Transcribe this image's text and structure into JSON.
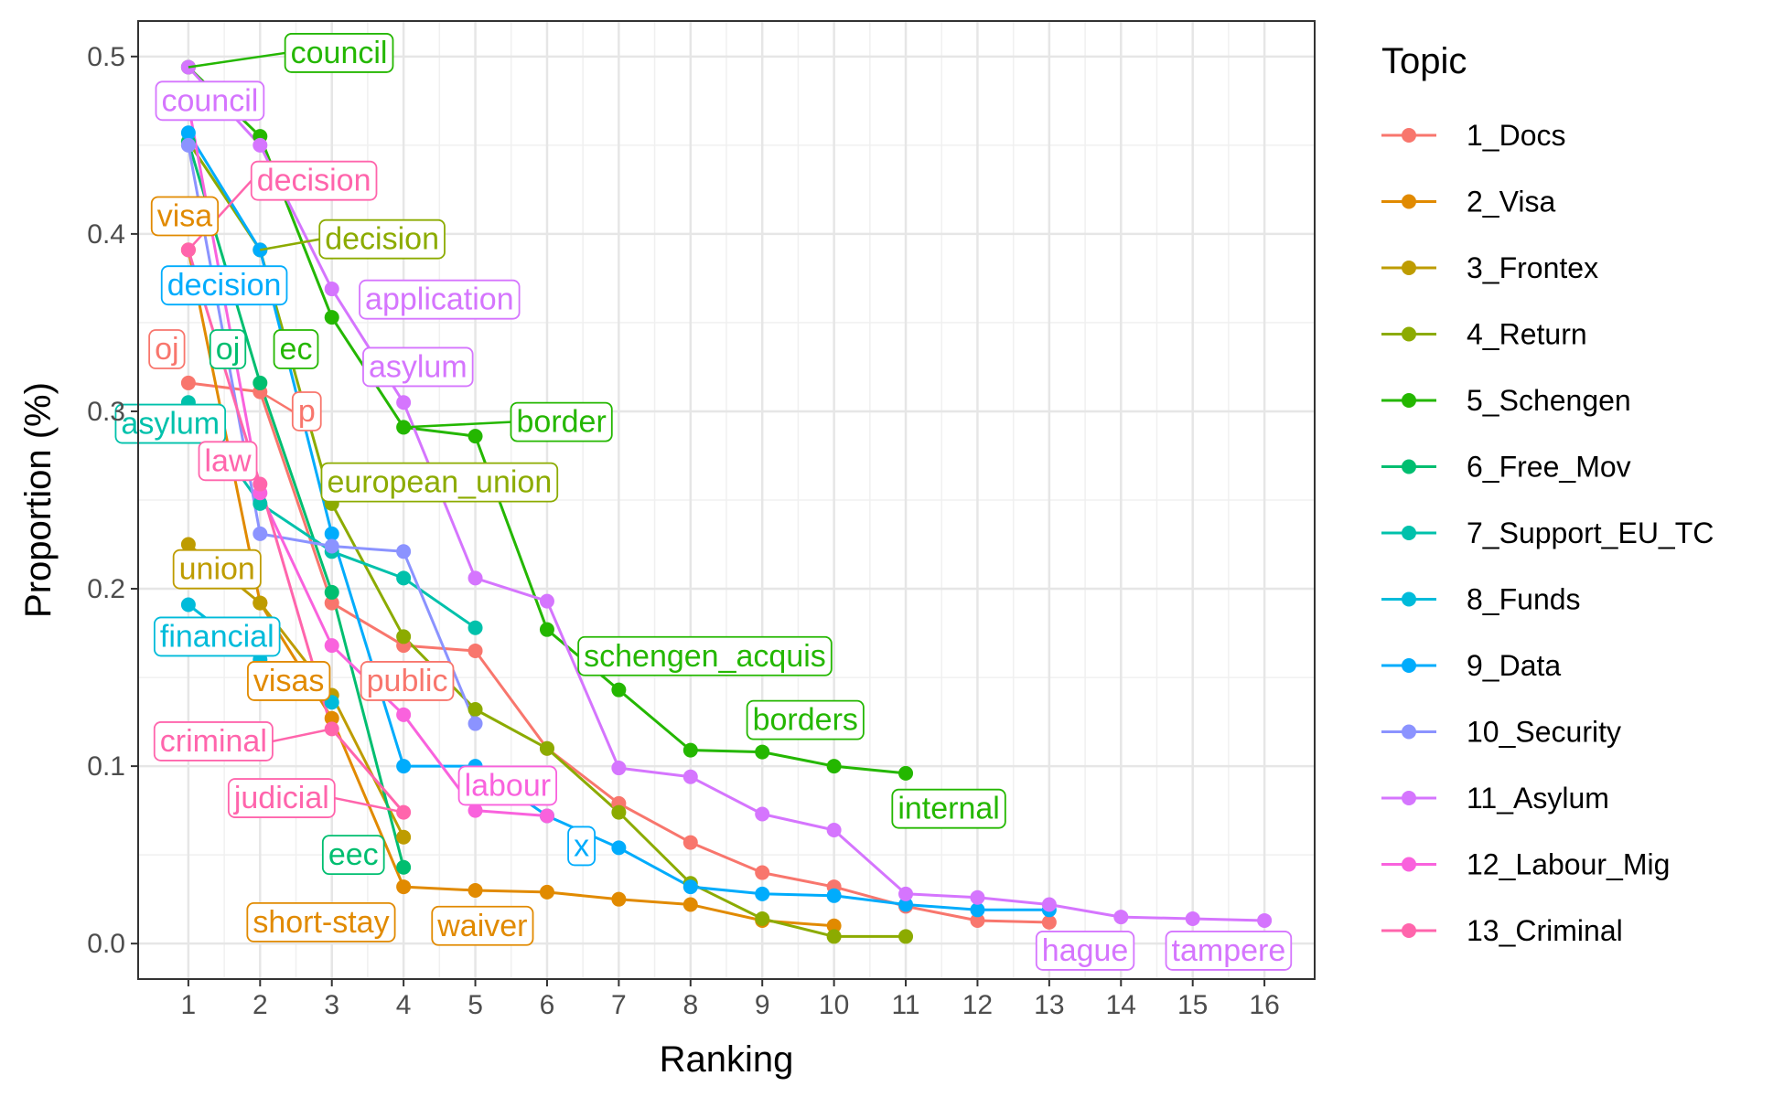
{
  "chart_data": {
    "type": "line",
    "xlabel": "Ranking",
    "ylabel": "Proportion (%)",
    "xlim": [
      0.3,
      16.7
    ],
    "ylim": [
      -0.02,
      0.52
    ],
    "x_ticks": [
      "1",
      "2",
      "3",
      "4",
      "5",
      "6",
      "7",
      "8",
      "9",
      "10",
      "11",
      "12",
      "13",
      "14",
      "15",
      "16"
    ],
    "y_ticks": [
      "0.0",
      "0.1",
      "0.2",
      "0.3",
      "0.4",
      "0.5"
    ],
    "grid": true,
    "legend": {
      "title": "Topic",
      "placement": "right"
    },
    "series": [
      {
        "name": "1_Docs",
        "color": "#F8766D",
        "points": [
          [
            1,
            0.316
          ],
          [
            2,
            0.311
          ],
          [
            3,
            0.192
          ],
          [
            4,
            0.168
          ],
          [
            5,
            0.165
          ],
          [
            6,
            0.11
          ],
          [
            7,
            0.079
          ],
          [
            8,
            0.057
          ],
          [
            9,
            0.04
          ],
          [
            10,
            0.032
          ],
          [
            11,
            0.021
          ],
          [
            12,
            0.013
          ],
          [
            13,
            0.012
          ]
        ]
      },
      {
        "name": "2_Visa",
        "color": "#E18A00",
        "points": [
          [
            1,
            0.391
          ],
          [
            2,
            0.192
          ],
          [
            3,
            0.127
          ],
          [
            4,
            0.032
          ],
          [
            5,
            0.03
          ],
          [
            6,
            0.029
          ],
          [
            7,
            0.025
          ],
          [
            8,
            0.022
          ],
          [
            9,
            0.013
          ],
          [
            10,
            0.01
          ]
        ]
      },
      {
        "name": "3_Frontex",
        "color": "#BE9C00",
        "points": [
          [
            1,
            0.225
          ],
          [
            2,
            0.192
          ],
          [
            3,
            0.14
          ],
          [
            4,
            0.06
          ]
        ]
      },
      {
        "name": "4_Return",
        "color": "#8CAB00",
        "points": [
          [
            1,
            0.452
          ],
          [
            2,
            0.391
          ],
          [
            3,
            0.248
          ],
          [
            4,
            0.173
          ],
          [
            5,
            0.132
          ],
          [
            6,
            0.11
          ],
          [
            7,
            0.074
          ],
          [
            8,
            0.034
          ],
          [
            9,
            0.014
          ],
          [
            10,
            0.004
          ],
          [
            11,
            0.004
          ]
        ]
      },
      {
        "name": "5_Schengen",
        "color": "#24B700",
        "points": [
          [
            1,
            0.494
          ],
          [
            2,
            0.455
          ],
          [
            3,
            0.353
          ],
          [
            4,
            0.291
          ],
          [
            5,
            0.286
          ],
          [
            6,
            0.177
          ],
          [
            7,
            0.143
          ],
          [
            8,
            0.109
          ],
          [
            9,
            0.108
          ],
          [
            10,
            0.1
          ],
          [
            11,
            0.096
          ]
        ]
      },
      {
        "name": "6_Free_Mov",
        "color": "#00BE70",
        "points": [
          [
            1,
            0.452
          ],
          [
            2,
            0.316
          ],
          [
            3,
            0.198
          ],
          [
            4,
            0.043
          ]
        ]
      },
      {
        "name": "7_Support_EU_TC",
        "color": "#00C1AB",
        "points": [
          [
            1,
            0.305
          ],
          [
            2,
            0.248
          ],
          [
            3,
            0.221
          ],
          [
            4,
            0.206
          ],
          [
            5,
            0.178
          ]
        ]
      },
      {
        "name": "8_Funds",
        "color": "#00BBDA",
        "points": [
          [
            1,
            0.191
          ],
          [
            2,
            0.16
          ],
          [
            3,
            0.136
          ]
        ]
      },
      {
        "name": "9_Data",
        "color": "#00ACFC",
        "points": [
          [
            1,
            0.457
          ],
          [
            2,
            0.391
          ],
          [
            3,
            0.231
          ],
          [
            4,
            0.1
          ],
          [
            5,
            0.1
          ],
          [
            6,
            0.072
          ],
          [
            7,
            0.054
          ],
          [
            8,
            0.032
          ],
          [
            9,
            0.028
          ],
          [
            10,
            0.027
          ],
          [
            11,
            0.022
          ],
          [
            12,
            0.019
          ],
          [
            13,
            0.019
          ]
        ]
      },
      {
        "name": "10_Security",
        "color": "#8B93FF",
        "points": [
          [
            1,
            0.45
          ],
          [
            2,
            0.231
          ],
          [
            3,
            0.224
          ],
          [
            4,
            0.221
          ],
          [
            5,
            0.124
          ]
        ]
      },
      {
        "name": "11_Asylum",
        "color": "#D575FE",
        "points": [
          [
            1,
            0.494
          ],
          [
            2,
            0.45
          ],
          [
            3,
            0.369
          ],
          [
            4,
            0.305
          ],
          [
            5,
            0.206
          ],
          [
            6,
            0.193
          ],
          [
            7,
            0.099
          ],
          [
            8,
            0.094
          ],
          [
            9,
            0.073
          ],
          [
            10,
            0.064
          ],
          [
            11,
            0.028
          ],
          [
            12,
            0.026
          ],
          [
            13,
            0.022
          ],
          [
            14,
            0.015
          ],
          [
            15,
            0.014
          ],
          [
            16,
            0.013
          ]
        ]
      },
      {
        "name": "12_Labour_Mig",
        "color": "#F962DD",
        "points": [
          [
            1,
            0.473
          ],
          [
            2,
            0.254
          ],
          [
            3,
            0.168
          ],
          [
            4,
            0.129
          ],
          [
            5,
            0.075
          ],
          [
            6,
            0.072
          ]
        ]
      },
      {
        "name": "13_Criminal",
        "color": "#FF65AC",
        "points": [
          [
            1,
            0.391
          ],
          [
            2,
            0.259
          ],
          [
            3,
            0.121
          ],
          [
            4,
            0.074
          ]
        ]
      }
    ],
    "annotations": [
      {
        "series": 4,
        "text": "council",
        "x": 3.1,
        "y": 0.502,
        "px": 1,
        "py": 0.494
      },
      {
        "series": 10,
        "text": "council",
        "x": 1.3,
        "y": 0.475
      },
      {
        "series": 12,
        "text": "decision",
        "x": 2.75,
        "y": 0.43,
        "px": 1,
        "py": 0.391
      },
      {
        "series": 1,
        "text": "visa",
        "x": 0.95,
        "y": 0.41
      },
      {
        "series": 3,
        "text": "decision",
        "x": 3.7,
        "y": 0.397,
        "px": 2,
        "py": 0.391
      },
      {
        "series": 8,
        "text": "decision",
        "x": 1.5,
        "y": 0.371
      },
      {
        "series": 10,
        "text": "application",
        "x": 4.5,
        "y": 0.363
      },
      {
        "series": 0,
        "text": "oj",
        "x": 0.7,
        "y": 0.335
      },
      {
        "series": 5,
        "text": "oj",
        "x": 1.55,
        "y": 0.335
      },
      {
        "series": 4,
        "text": "ec",
        "x": 2.5,
        "y": 0.335
      },
      {
        "series": 10,
        "text": "asylum",
        "x": 4.2,
        "y": 0.325
      },
      {
        "series": 0,
        "text": "p",
        "x": 2.65,
        "y": 0.3,
        "px": 2,
        "py": 0.311
      },
      {
        "series": 6,
        "text": "asylum",
        "x": 0.75,
        "y": 0.293
      },
      {
        "series": 4,
        "text": "border",
        "x": 6.2,
        "y": 0.294,
        "px": 4,
        "py": 0.291
      },
      {
        "series": 12,
        "text": "law",
        "x": 1.55,
        "y": 0.272
      },
      {
        "series": 3,
        "text": "european_union",
        "x": 4.5,
        "y": 0.26
      },
      {
        "series": 2,
        "text": "union",
        "x": 1.4,
        "y": 0.211
      },
      {
        "series": 7,
        "text": "financial",
        "x": 1.4,
        "y": 0.173
      },
      {
        "series": 4,
        "text": "schengen_acquis",
        "x": 8.2,
        "y": 0.162
      },
      {
        "series": 1,
        "text": "visas",
        "x": 2.4,
        "y": 0.148
      },
      {
        "series": 0,
        "text": "public",
        "x": 4.05,
        "y": 0.148
      },
      {
        "series": 12,
        "text": "criminal",
        "x": 1.35,
        "y": 0.114,
        "px": 3,
        "py": 0.121
      },
      {
        "series": 4,
        "text": "borders",
        "x": 9.6,
        "y": 0.126
      },
      {
        "series": 11,
        "text": "labour",
        "x": 5.45,
        "y": 0.089
      },
      {
        "series": 12,
        "text": "judicial",
        "x": 2.3,
        "y": 0.082,
        "px": 4,
        "py": 0.074
      },
      {
        "series": 4,
        "text": "internal",
        "x": 11.6,
        "y": 0.076
      },
      {
        "series": 8,
        "text": "x",
        "x": 6.48,
        "y": 0.055
      },
      {
        "series": 5,
        "text": "eec",
        "x": 3.3,
        "y": 0.05
      },
      {
        "series": 1,
        "text": "short-stay",
        "x": 2.85,
        "y": 0.012
      },
      {
        "series": 1,
        "text": "waiver",
        "x": 5.1,
        "y": 0.01
      },
      {
        "series": 10,
        "text": "hague",
        "x": 13.5,
        "y": -0.004
      },
      {
        "series": 10,
        "text": "tampere",
        "x": 15.5,
        "y": -0.004
      }
    ]
  }
}
